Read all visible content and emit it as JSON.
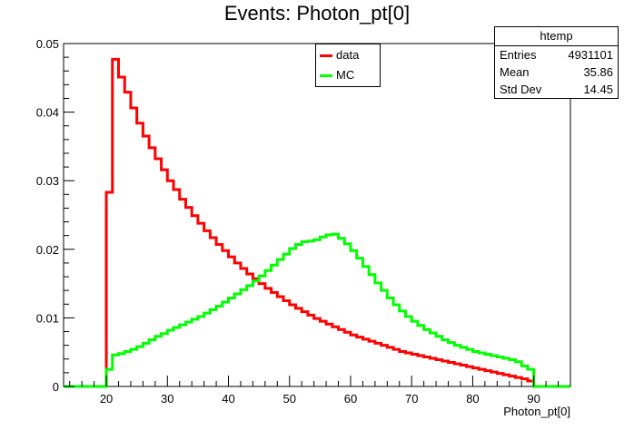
{
  "chart_data": {
    "type": "line",
    "title": "Events: Photon_pt[0]",
    "xlabel": "Photon_pt[0]",
    "ylabel": "",
    "xlim": [
      13,
      96
    ],
    "ylim": [
      0,
      0.05
    ],
    "xticks": [
      20,
      30,
      40,
      50,
      60,
      70,
      80,
      90
    ],
    "yticks": [
      0,
      0.01,
      0.02,
      0.03,
      0.04,
      0.05
    ],
    "xtick_labels": [
      "20",
      "30",
      "40",
      "50",
      "60",
      "70",
      "80",
      "90"
    ],
    "ytick_labels": [
      "0",
      "0.01",
      "0.02",
      "0.03",
      "0.04",
      "0.05"
    ],
    "bin_width": 1,
    "series": [
      {
        "name": "data",
        "color": "#ff0000",
        "x": [
          13,
          14,
          15,
          16,
          17,
          18,
          19,
          20,
          21,
          22,
          23,
          24,
          25,
          26,
          27,
          28,
          29,
          30,
          31,
          32,
          33,
          34,
          35,
          36,
          37,
          38,
          39,
          40,
          41,
          42,
          43,
          44,
          45,
          46,
          47,
          48,
          49,
          50,
          51,
          52,
          53,
          54,
          55,
          56,
          57,
          58,
          59,
          60,
          61,
          62,
          63,
          64,
          65,
          66,
          67,
          68,
          69,
          70,
          71,
          72,
          73,
          74,
          75,
          76,
          77,
          78,
          79,
          80,
          81,
          82,
          83,
          84,
          85,
          86,
          87,
          88,
          89,
          90,
          91,
          92,
          93,
          94,
          95
        ],
        "values": [
          0,
          0,
          0,
          0,
          0,
          0,
          0,
          0.0283,
          0.0477,
          0.0451,
          0.0429,
          0.0406,
          0.0384,
          0.0365,
          0.0348,
          0.0332,
          0.0316,
          0.03,
          0.0287,
          0.0273,
          0.0261,
          0.0249,
          0.0238,
          0.0227,
          0.0217,
          0.0207,
          0.0198,
          0.0189,
          0.018,
          0.0172,
          0.0164,
          0.0157,
          0.015,
          0.0143,
          0.0137,
          0.0131,
          0.0125,
          0.0119,
          0.0114,
          0.0109,
          0.0104,
          0.0099,
          0.0095,
          0.0091,
          0.0087,
          0.0083,
          0.0079,
          0.0075,
          0.0072,
          0.0069,
          0.0066,
          0.0063,
          0.006,
          0.0057,
          0.0054,
          0.0051,
          0.0049,
          0.0047,
          0.0045,
          0.0043,
          0.0041,
          0.0039,
          0.0037,
          0.0035,
          0.0033,
          0.0031,
          0.0029,
          0.0027,
          0.0025,
          0.0023,
          0.0021,
          0.0019,
          0.0017,
          0.0015,
          0.0013,
          0.0011,
          0.0008,
          0,
          0,
          0,
          0,
          0,
          0
        ]
      },
      {
        "name": "MC",
        "color": "#00ff00",
        "x": [
          13,
          14,
          15,
          16,
          17,
          18,
          19,
          20,
          21,
          22,
          23,
          24,
          25,
          26,
          27,
          28,
          29,
          30,
          31,
          32,
          33,
          34,
          35,
          36,
          37,
          38,
          39,
          40,
          41,
          42,
          43,
          44,
          45,
          46,
          47,
          48,
          49,
          50,
          51,
          52,
          53,
          54,
          55,
          56,
          57,
          58,
          59,
          60,
          61,
          62,
          63,
          64,
          65,
          66,
          67,
          68,
          69,
          70,
          71,
          72,
          73,
          74,
          75,
          76,
          77,
          78,
          79,
          80,
          81,
          82,
          83,
          84,
          85,
          86,
          87,
          88,
          89,
          90,
          91,
          92,
          93,
          94,
          95
        ],
        "values": [
          0,
          0,
          0,
          0,
          0,
          0,
          0,
          0.0025,
          0.0046,
          0.0048,
          0.0051,
          0.0054,
          0.0058,
          0.0063,
          0.0068,
          0.0073,
          0.0077,
          0.0082,
          0.0086,
          0.009,
          0.0094,
          0.0098,
          0.0102,
          0.0107,
          0.0112,
          0.0117,
          0.0123,
          0.0129,
          0.0135,
          0.0141,
          0.0147,
          0.0154,
          0.0161,
          0.0169,
          0.0177,
          0.0185,
          0.0193,
          0.0201,
          0.0207,
          0.0211,
          0.0212,
          0.0214,
          0.0218,
          0.0221,
          0.0222,
          0.0216,
          0.0208,
          0.0198,
          0.0187,
          0.0175,
          0.0163,
          0.0151,
          0.014,
          0.0129,
          0.0119,
          0.011,
          0.0102,
          0.0095,
          0.0089,
          0.0083,
          0.0078,
          0.0073,
          0.0068,
          0.0064,
          0.006,
          0.0057,
          0.0054,
          0.0051,
          0.0049,
          0.0047,
          0.0045,
          0.0043,
          0.0041,
          0.0039,
          0.0036,
          0.003,
          0.0025,
          0,
          0,
          0,
          0,
          0,
          0
        ]
      }
    ],
    "legend": "top-center",
    "grid": false
  },
  "stats_box": {
    "title": "htemp",
    "rows": [
      {
        "label": "Entries",
        "value": "4931101"
      },
      {
        "label": "Mean",
        "value": "35.86"
      },
      {
        "label": "Std Dev",
        "value": "14.45"
      }
    ]
  }
}
